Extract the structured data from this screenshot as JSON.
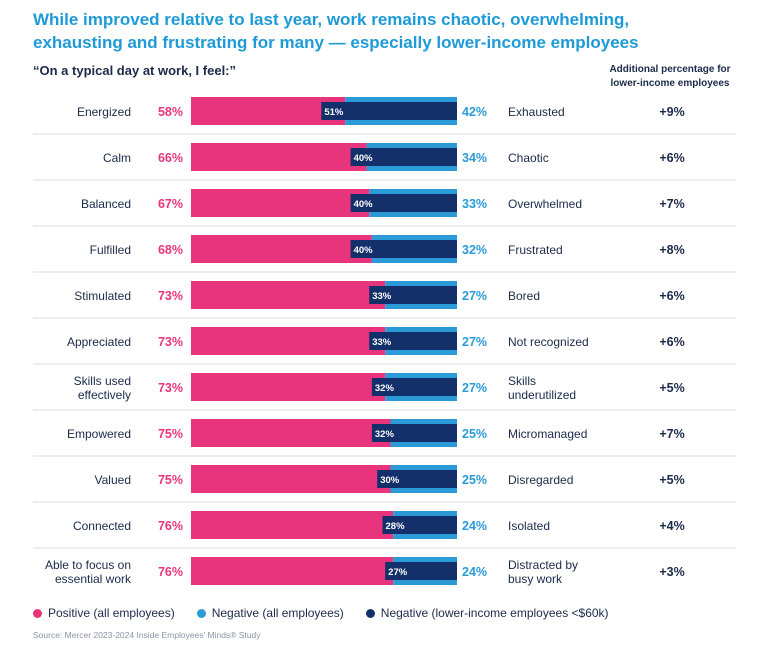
{
  "title_lines": [
    "While improved relative to last year, work remains chaotic, overwhelming,",
    "exhausting and frustrating for many — especially lower-income employees"
  ],
  "subtitle": "“On a typical day at work, I feel:”",
  "additional_header_lines": [
    "Additional percentage for",
    "lower-income employees"
  ],
  "colors": {
    "positive": "#e8347c",
    "negative": "#2b9bd8",
    "negative_low_income": "#14306a",
    "title": "#1e9ad6",
    "text": "#1b2a4a",
    "separator": "#d9dde3"
  },
  "legend": [
    {
      "label": "Positive (all employees)",
      "color": "#e8347c"
    },
    {
      "label": "Negative (all employees)",
      "color": "#2b9bd8"
    },
    {
      "label": "Negative (lower-income employees <$60k)",
      "color": "#14306a"
    }
  ],
  "source": "Source: Mercer 2023-2024 Inside Employees’ Minds® Study",
  "chart_data": {
    "type": "bar",
    "orientation": "horizontal-stacked",
    "unit": "%",
    "scale_max": 100,
    "rows": [
      {
        "positive_label": "Energized",
        "positive": 58,
        "negative": 42,
        "negative_low_income": 51,
        "negative_label": "Exhausted",
        "additional": "+9%"
      },
      {
        "positive_label": "Calm",
        "positive": 66,
        "negative": 34,
        "negative_low_income": 40,
        "negative_label": "Chaotic",
        "additional": "+6%"
      },
      {
        "positive_label": "Balanced",
        "positive": 67,
        "negative": 33,
        "negative_low_income": 40,
        "negative_label": "Overwhelmed",
        "additional": "+7%"
      },
      {
        "positive_label": "Fulfilled",
        "positive": 68,
        "negative": 32,
        "negative_low_income": 40,
        "negative_label": "Frustrated",
        "additional": "+8%"
      },
      {
        "positive_label": "Stimulated",
        "positive": 73,
        "negative": 27,
        "negative_low_income": 33,
        "negative_label": "Bored",
        "additional": "+6%"
      },
      {
        "positive_label": "Appreciated",
        "positive": 73,
        "negative": 27,
        "negative_low_income": 33,
        "negative_label": "Not recognized",
        "additional": "+6%"
      },
      {
        "positive_label": "Skills used effectively",
        "positive": 73,
        "negative": 27,
        "negative_low_income": 32,
        "negative_label": "Skills underutilized",
        "additional": "+5%"
      },
      {
        "positive_label": "Empowered",
        "positive": 75,
        "negative": 25,
        "negative_low_income": 32,
        "negative_label": "Micromanaged",
        "additional": "+7%"
      },
      {
        "positive_label": "Valued",
        "positive": 75,
        "negative": 25,
        "negative_low_income": 30,
        "negative_label": "Disregarded",
        "additional": "+5%"
      },
      {
        "positive_label": "Connected",
        "positive": 76,
        "negative": 24,
        "negative_low_income": 28,
        "negative_label": "Isolated",
        "additional": "+4%"
      },
      {
        "positive_label": "Able to focus on essential work",
        "positive": 76,
        "negative": 24,
        "negative_low_income": 27,
        "negative_label": "Distracted by busy work",
        "additional": "+3%"
      }
    ]
  }
}
